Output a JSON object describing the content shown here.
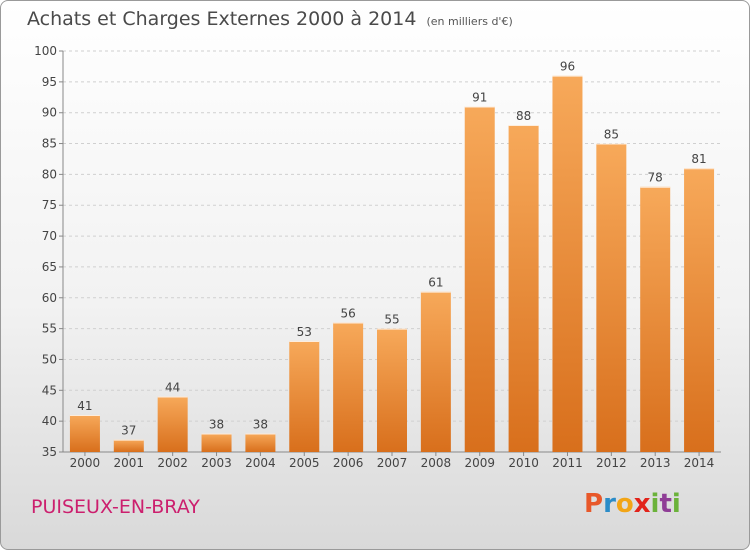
{
  "title": "Achats et Charges Externes 2000 à 2014",
  "unit": "(en milliers d'€)",
  "location": "PUISEUX-EN-BRAY",
  "logo_text": "Proxiti",
  "colors": {
    "bar_light": "#f7a95a",
    "bar_dark": "#d86f1c",
    "location": "#cc1f6e"
  },
  "chart_data": {
    "type": "bar",
    "title": "Achats et Charges Externes 2000 à 2014",
    "categories": [
      "2000",
      "2001",
      "2002",
      "2003",
      "2004",
      "2005",
      "2006",
      "2007",
      "2008",
      "2009",
      "2010",
      "2011",
      "2012",
      "2013",
      "2014"
    ],
    "values": [
      41,
      37,
      44,
      38,
      38,
      53,
      56,
      55,
      61,
      91,
      88,
      96,
      85,
      78,
      81
    ],
    "ylim": [
      35,
      100
    ],
    "yticks": [
      35,
      40,
      45,
      50,
      55,
      60,
      65,
      70,
      75,
      80,
      85,
      90,
      95,
      100
    ],
    "grid": true,
    "data_labels": true
  }
}
